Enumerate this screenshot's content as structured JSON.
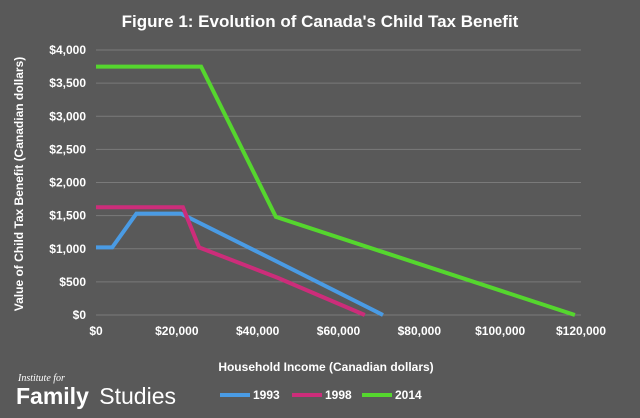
{
  "chart_data": {
    "type": "line",
    "title": "Figure 1: Evolution of Canada's Child Tax Benefit",
    "xlabel": "Household Income (Canadian dollars)",
    "ylabel": "Value of Child Tax Benefit (Canadian dollars)",
    "xlim": [
      0,
      120000
    ],
    "ylim": [
      0,
      4000
    ],
    "xticks": [
      0,
      20000,
      40000,
      60000,
      80000,
      100000,
      120000
    ],
    "xtick_labels": [
      "$0",
      "$20,000",
      "$40,000",
      "$60,000",
      "$80,000",
      "$100,000",
      "$120,000"
    ],
    "yticks": [
      0,
      500,
      1000,
      1500,
      2000,
      2500,
      3000,
      3500,
      4000
    ],
    "ytick_labels": [
      "$0",
      "$500",
      "$1,000",
      "$1,500",
      "$2,000",
      "$2,500",
      "$3,000",
      "$3,500",
      "$4,000"
    ],
    "grid": "horizontal",
    "legend_position": "bottom",
    "series": [
      {
        "name": "1993",
        "color": "#4a9be4",
        "x": [
          0,
          4000,
          10000,
          21000,
          44000,
          71000
        ],
        "y": [
          1020,
          1020,
          1530,
          1530,
          830,
          0
        ]
      },
      {
        "name": "1998",
        "color": "#cc2d7a",
        "x": [
          0,
          21500,
          25500,
          45000,
          66500
        ],
        "y": [
          1625,
          1625,
          1020,
          560,
          0
        ]
      },
      {
        "name": "2014",
        "color": "#55d62e",
        "x": [
          0,
          26000,
          44500,
          118500
        ],
        "y": [
          3750,
          3750,
          1480,
          0
        ]
      }
    ]
  },
  "branding": {
    "small": "Institute for",
    "big_bold": "Family",
    "big_regular": "Studies"
  }
}
